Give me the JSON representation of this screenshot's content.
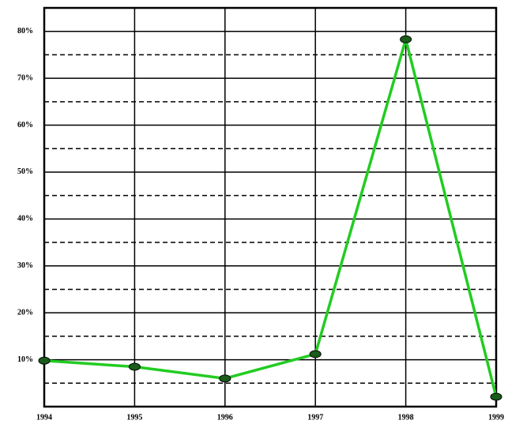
{
  "chart_data": {
    "type": "line",
    "x": [
      1994,
      1995,
      1996,
      1997,
      1998,
      1999
    ],
    "xlim": [
      1994,
      1999
    ],
    "xticks": [
      1994,
      1995,
      1996,
      1997,
      1998,
      1999
    ],
    "series": [
      {
        "color": "#22cc22",
        "marker_color": "#1a5c1a",
        "values": [
          9.8,
          8.5,
          6.0,
          11.2,
          78.3,
          2.1
        ]
      }
    ],
    "ylim": [
      0,
      85
    ],
    "yticks": [
      {
        "value": 10,
        "label": "10%"
      },
      {
        "value": 20,
        "label": "20%"
      },
      {
        "value": 30,
        "label": "30%"
      },
      {
        "value": 40,
        "label": "40%"
      },
      {
        "value": 50,
        "label": "50%"
      },
      {
        "value": 60,
        "label": "60%"
      },
      {
        "value": 70,
        "label": "70%"
      },
      {
        "value": 80,
        "label": "80%"
      }
    ],
    "minor_yticks": [
      5,
      15,
      25,
      35,
      45,
      55,
      65,
      75
    ],
    "grid": true
  }
}
